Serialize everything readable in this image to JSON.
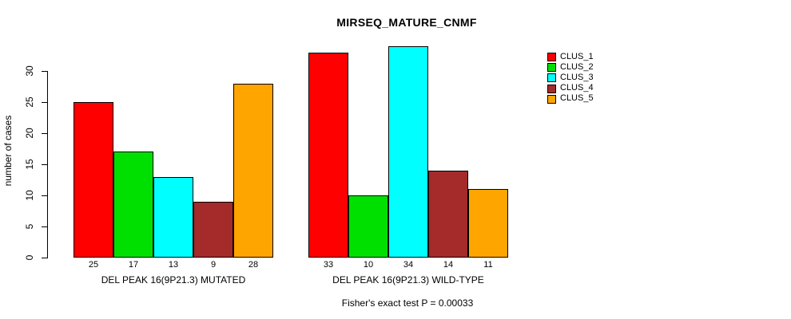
{
  "title": "MIRSEQ_MATURE_CNMF",
  "chart_data": {
    "type": "bar",
    "title": "MIRSEQ_MATURE_CNMF",
    "xlabel": "",
    "ylabel": "number of cases",
    "ylim": [
      0,
      34
    ],
    "yticks": [
      0,
      5,
      10,
      15,
      20,
      25,
      30
    ],
    "grid": false,
    "legend_position": "right",
    "series_names": [
      "CLUS_1",
      "CLUS_2",
      "CLUS_3",
      "CLUS_4",
      "CLUS_5"
    ],
    "colors": [
      "#FF0000",
      "#00E000",
      "#00FFFF",
      "#A52A2A",
      "#FFA500"
    ],
    "groups": [
      {
        "label": "DEL PEAK 16(9P21.3) MUTATED",
        "values": [
          25,
          17,
          13,
          9,
          28
        ]
      },
      {
        "label": "DEL PEAK 16(9P21.3) WILD-TYPE",
        "values": [
          33,
          10,
          34,
          14,
          11
        ]
      }
    ],
    "annotation": "Fisher's exact test P = 0.00033"
  }
}
